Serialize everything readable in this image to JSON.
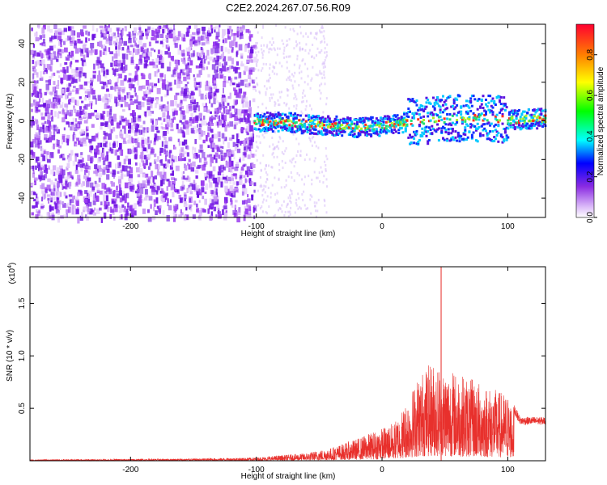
{
  "title": "C2E2.2024.267.07.56.R09",
  "chart_data": [
    {
      "type": "heatmap",
      "xlabel": "Height of straight line (km)",
      "ylabel": "Frequency (Hz)",
      "xlim": [
        -280,
        130
      ],
      "ylim": [
        -50,
        50
      ],
      "xticks": [
        -200,
        -100,
        0,
        100
      ],
      "yticks": [
        -40,
        -20,
        0,
        20,
        40
      ],
      "ridge": {
        "x": [
          -100,
          -80,
          -60,
          -40,
          -20,
          0,
          20,
          40,
          60,
          80,
          100,
          130
        ],
        "y": [
          0,
          0,
          -1,
          -2,
          -3,
          -2,
          0,
          1,
          2,
          2,
          1,
          2
        ]
      },
      "noise_region_x": [
        -280,
        -102
      ],
      "colorbar": {
        "label": "Normalized spectral amplitude",
        "range": [
          0.0,
          0.95
        ],
        "ticks": [
          0.0,
          0.2,
          0.4,
          0.6,
          0.8
        ]
      }
    },
    {
      "type": "line",
      "xlabel": "Height of straight line (km)",
      "ylabel": "SNR (10 * v/v)",
      "multiplier": "(x10",
      "multiplier_exp": "4",
      "multiplier_close": ")",
      "xlim": [
        -280,
        130
      ],
      "ylim": [
        0,
        1.85
      ],
      "xticks": [
        -200,
        -100,
        0,
        100
      ],
      "yticks": [
        0.5,
        1.0,
        1.5
      ],
      "ytick_labels": [
        "0.5",
        "1.0",
        "1.5"
      ],
      "color": "#e8302c",
      "envelope": {
        "x": [
          -280,
          -150,
          -100,
          -60,
          -40,
          -20,
          0,
          10,
          20,
          30,
          40,
          50,
          60,
          70,
          80,
          90,
          100,
          110,
          130
        ],
        "y": [
          0.01,
          0.02,
          0.03,
          0.07,
          0.12,
          0.2,
          0.3,
          0.35,
          0.55,
          0.8,
          0.9,
          0.85,
          0.8,
          0.75,
          0.7,
          0.65,
          0.6,
          0.38,
          0.38
        ]
      },
      "peak": {
        "x": 47,
        "y": 1.85
      }
    }
  ]
}
